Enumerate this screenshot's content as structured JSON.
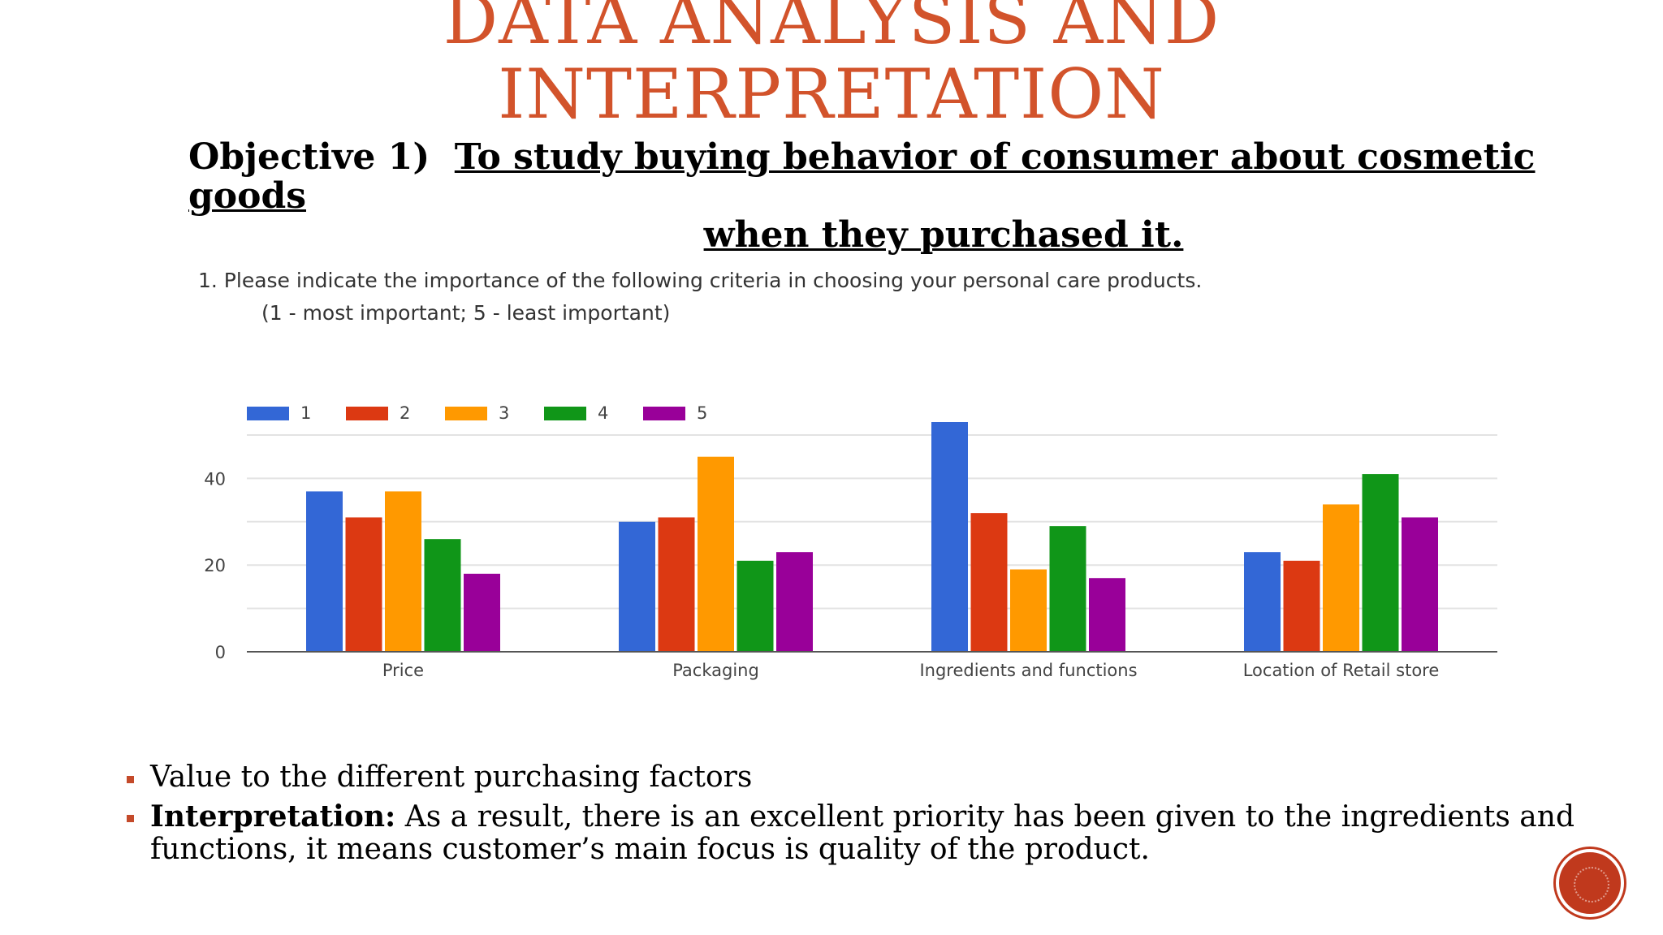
{
  "slide": {
    "title_line1": "DATA ANALYSIS AND",
    "title_line2": "INTERPRETATION",
    "objective_label": "Objective 1)",
    "objective_text_line1": "To study buying behavior of consumer about cosmetic goods",
    "objective_text_line2": "when they purchased it.",
    "question_line1": "1. Please indicate the importance of the following criteria in choosing your personal care products.",
    "question_line2": "(1 - most important; 5 - least important)",
    "bullet1": "Value to the different purchasing factors",
    "bullet2_label": "Interpretation:",
    "bullet2_text": " As a result, there is an excellent priority has been given to the ingredients and functions, it means customer’s main focus is quality of the product."
  },
  "chart_data": {
    "type": "bar",
    "categories": [
      "Price",
      "Packaging",
      "Ingredients and functions",
      "Location of Retail store"
    ],
    "series": [
      {
        "name": "1",
        "color": "#3367d6",
        "values": [
          37,
          30,
          53,
          23
        ]
      },
      {
        "name": "2",
        "color": "#dc3912",
        "values": [
          31,
          31,
          32,
          21
        ]
      },
      {
        "name": "3",
        "color": "#ff9900",
        "values": [
          37,
          45,
          19,
          34
        ]
      },
      {
        "name": "4",
        "color": "#109618",
        "values": [
          26,
          21,
          29,
          41
        ]
      },
      {
        "name": "5",
        "color": "#990099",
        "values": [
          18,
          23,
          17,
          31
        ]
      }
    ],
    "yticks": [
      0,
      20,
      40
    ],
    "ylim": [
      0,
      53
    ],
    "grid": true,
    "legend": "top-left"
  }
}
